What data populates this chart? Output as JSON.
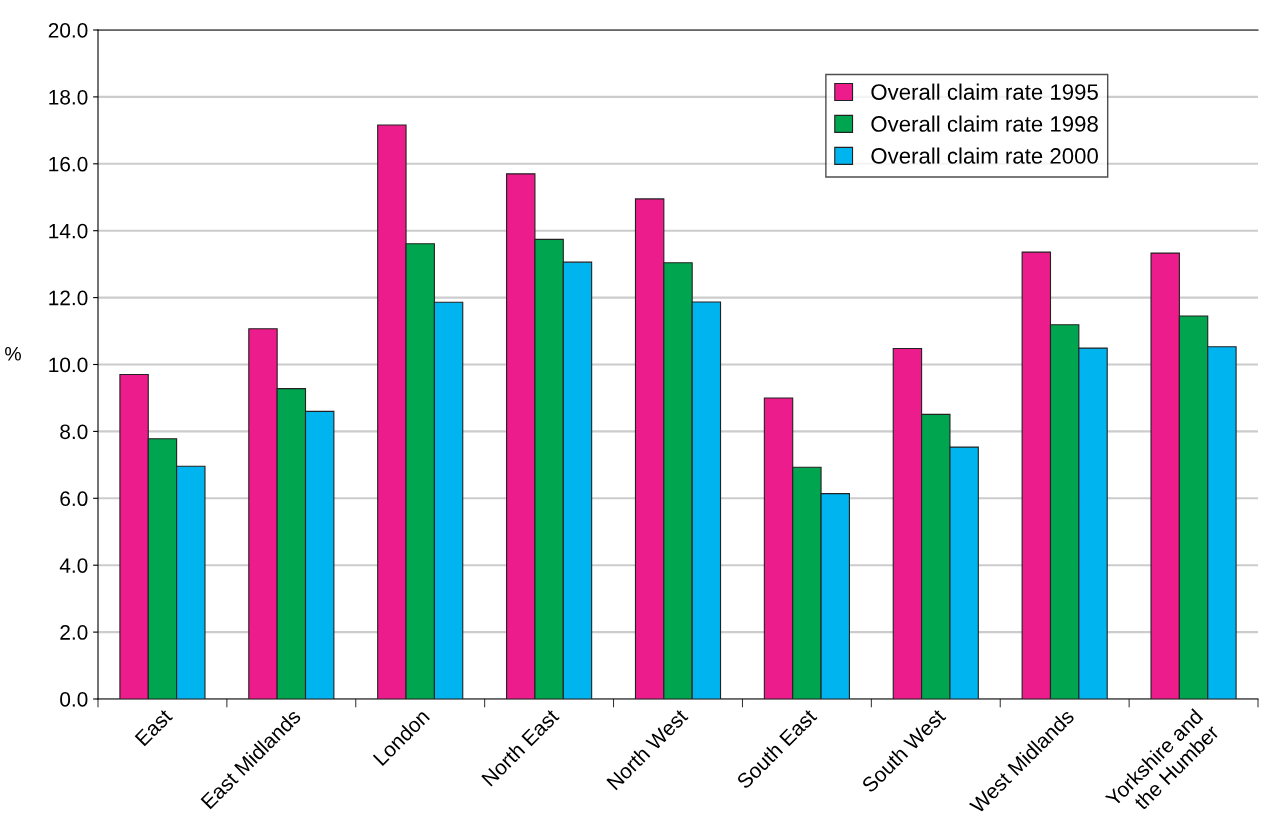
{
  "chart_data": {
    "type": "bar",
    "ylabel": "%",
    "categories": [
      "East",
      "East Midlands",
      "London",
      "North East",
      "North West",
      "South East",
      "South West",
      "West Midlands",
      "Yorkshire and\nthe Humber"
    ],
    "series": [
      {
        "name": "Overall claim rate 1995",
        "color": "#ec1c8c",
        "values": [
          9.7,
          11.07,
          17.16,
          15.7,
          14.95,
          9.0,
          10.48,
          13.36,
          13.33
        ]
      },
      {
        "name": "Overall claim rate 1998",
        "color": "#00a64f",
        "values": [
          7.78,
          9.28,
          13.61,
          13.74,
          13.04,
          6.93,
          8.51,
          11.19,
          11.45
        ]
      },
      {
        "name": "Overall claim rate 2000",
        "color": "#00b5ef",
        "values": [
          6.96,
          8.6,
          11.86,
          13.06,
          11.87,
          6.14,
          7.53,
          10.49,
          10.53
        ]
      }
    ],
    "ylim": [
      0,
      20
    ],
    "yticks": [
      {
        "value": 0,
        "label": "0.0"
      },
      {
        "value": 2,
        "label": "2.0"
      },
      {
        "value": 4,
        "label": "4.0"
      },
      {
        "value": 6,
        "label": "6.0"
      },
      {
        "value": 8,
        "label": "8.0"
      },
      {
        "value": 10,
        "label": "10.0"
      },
      {
        "value": 12,
        "label": "12.0"
      },
      {
        "value": 14,
        "label": "14.0"
      },
      {
        "value": 16,
        "label": "16.0"
      },
      {
        "value": 18,
        "label": "18.0"
      },
      {
        "value": 20,
        "label": "20.0"
      }
    ],
    "grid": "y",
    "legend": "top right"
  }
}
